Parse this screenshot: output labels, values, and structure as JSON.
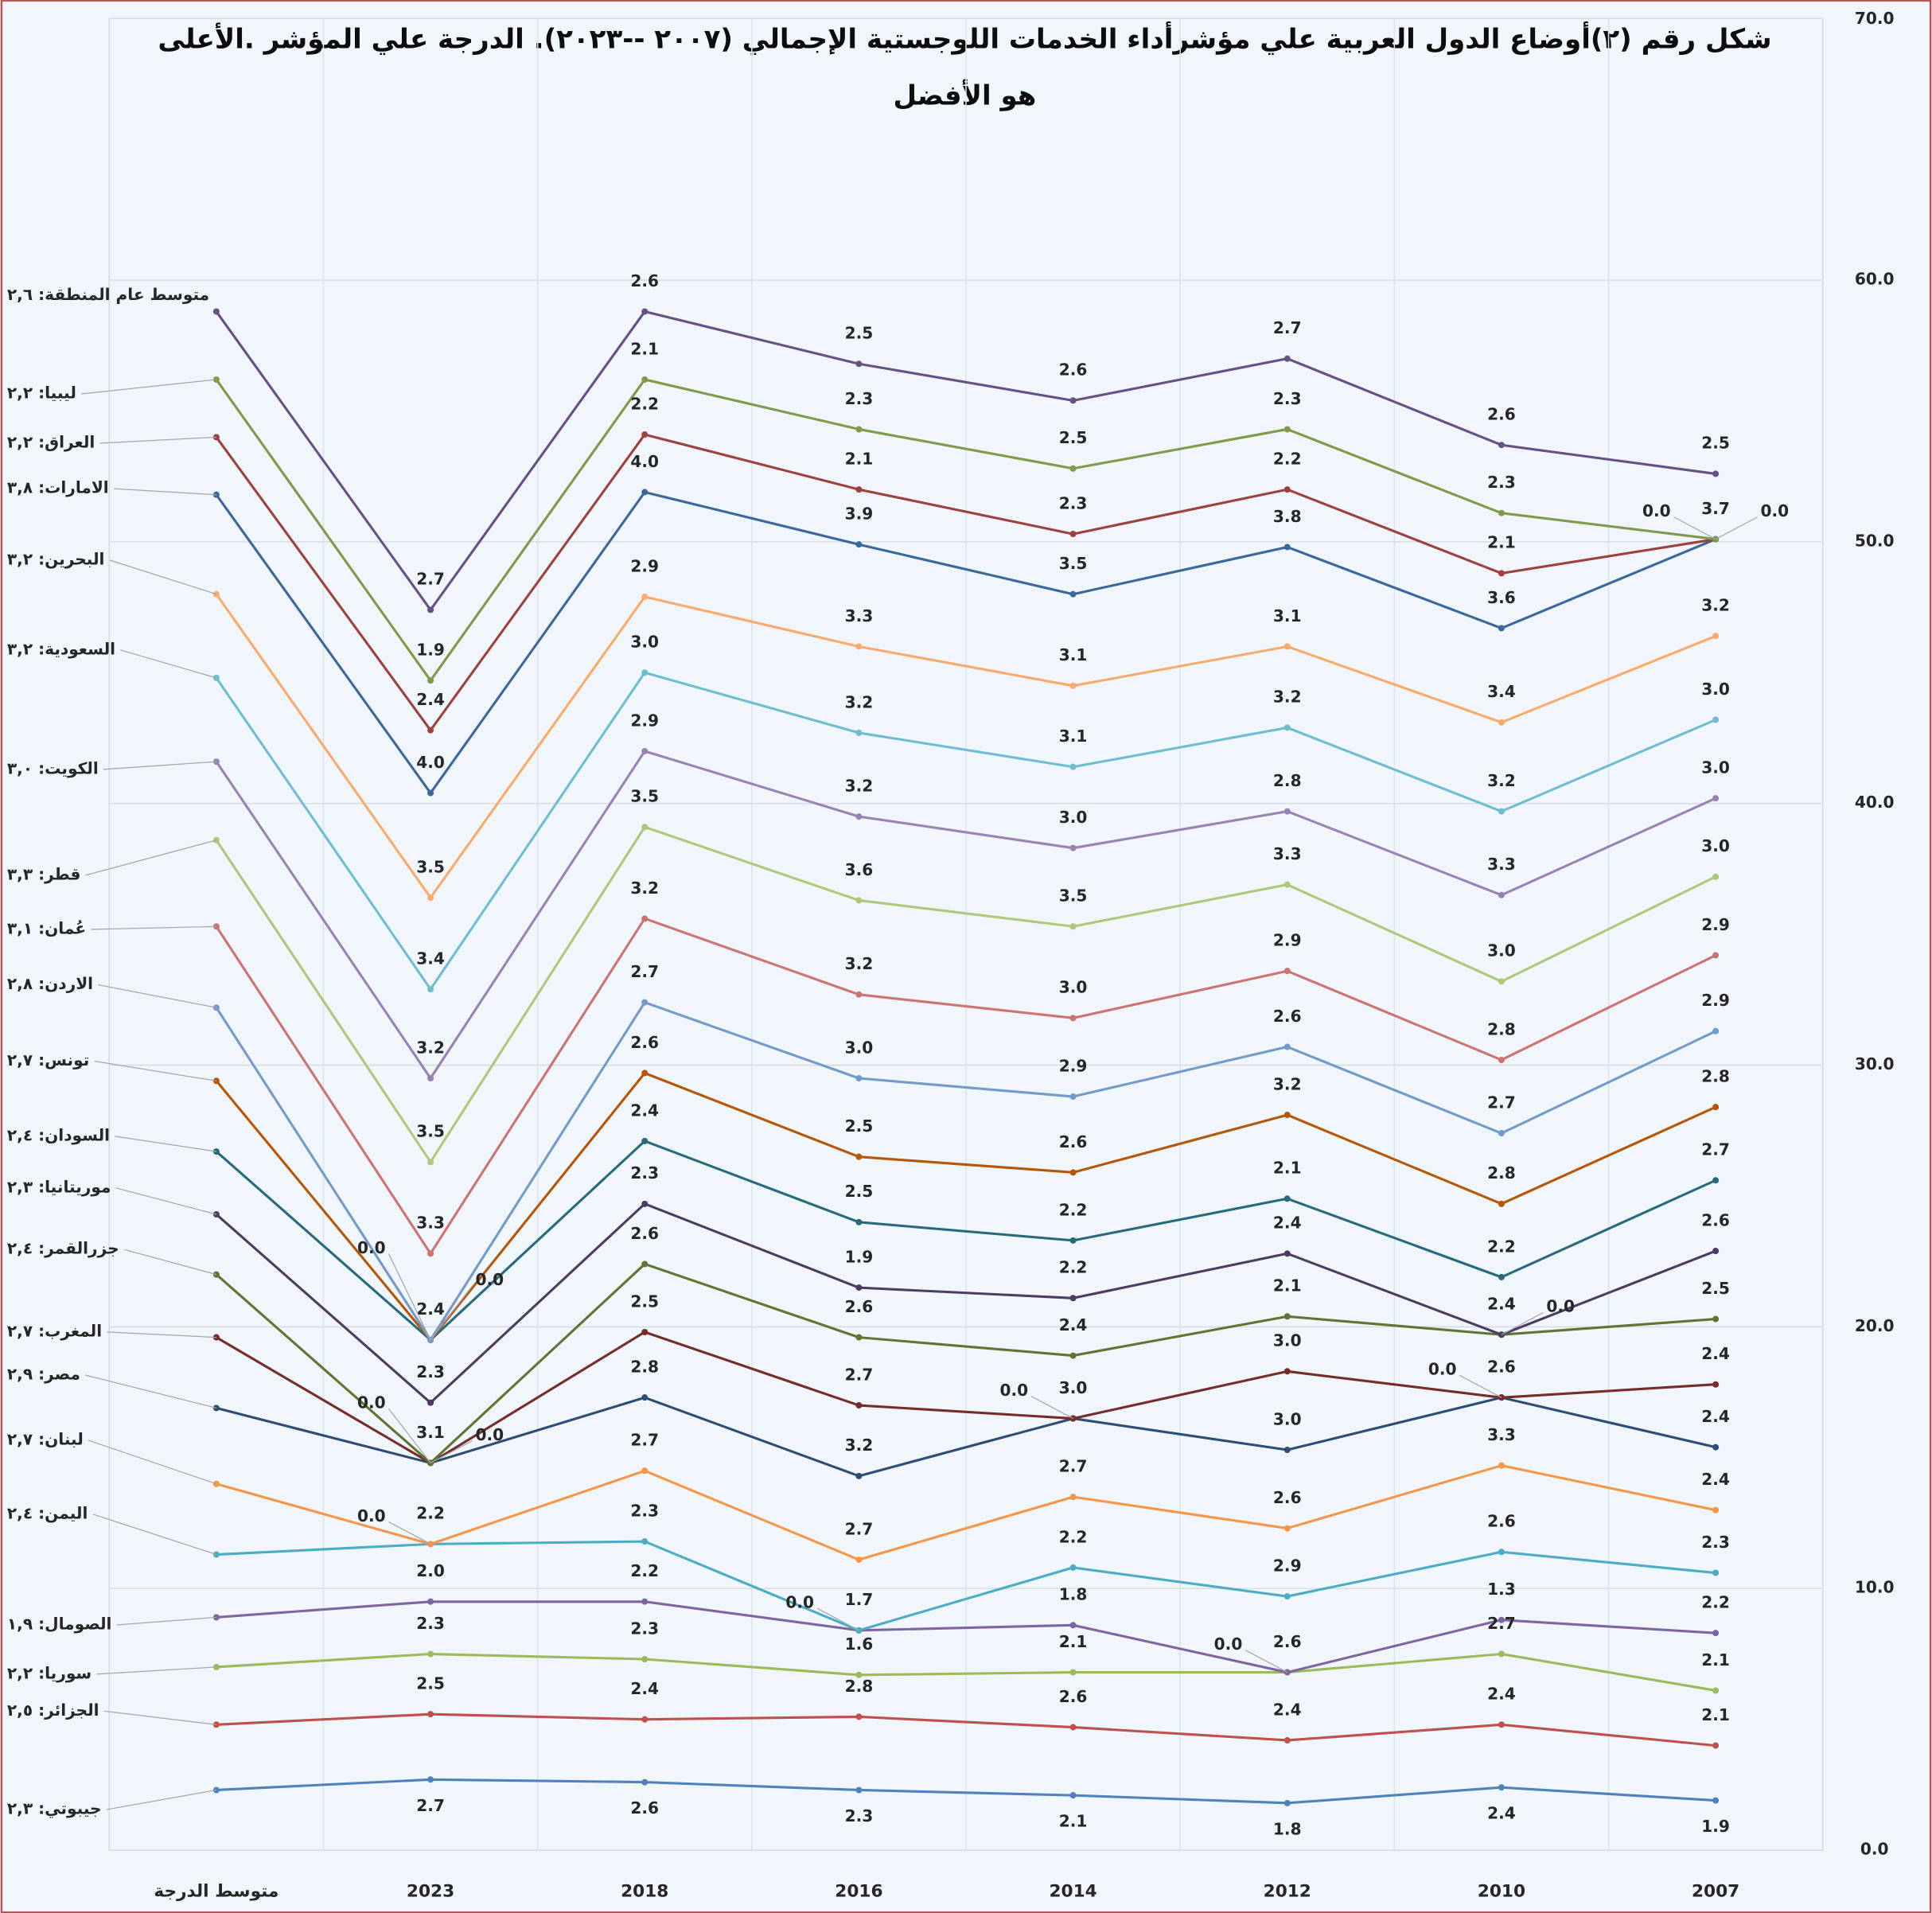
{
  "chart_data": {
    "type": "stacked-line",
    "title": [
      "شكل رقم (٢)أوضاع الدول العربية علي مؤشرأداء الخدمات اللوجستية الإجمالي (٢٠٠٧ --٢٠٢٣). الدرجة علي المؤشر .الأعلى",
      "هو الأفضل"
    ],
    "categories": [
      "متوسط الدرجة",
      "2023",
      "2018",
      "2016",
      "2014",
      "2012",
      "2010",
      "2007"
    ],
    "ylim": [
      0,
      70
    ],
    "yticks": [
      {
        "value": 0,
        "label": "0.0"
      },
      {
        "value": 10,
        "label": "10.0"
      },
      {
        "value": 20,
        "label": "20.0"
      },
      {
        "value": 30,
        "label": "30.0"
      },
      {
        "value": 40,
        "label": "40.0"
      },
      {
        "value": 50,
        "label": "50.0"
      },
      {
        "value": 60,
        "label": "60.0"
      },
      {
        "value": 70,
        "label": "70.0"
      }
    ],
    "y_axis_side": "right",
    "grid": true,
    "series": [
      {
        "color": "#4f81bd",
        "values": [
          2.3,
          2.7,
          2.6,
          2.3,
          2.1,
          1.8,
          2.4,
          1.9
        ],
        "value_labels": [
          "جيبوتي: ٢,٣",
          "2.7",
          "2.6",
          "2.3",
          "2.1",
          "1.8",
          "2.4",
          "1.9"
        ]
      },
      {
        "color": "#c0504d",
        "values": [
          2.5,
          2.5,
          2.4,
          2.8,
          2.6,
          2.4,
          2.4,
          2.1
        ],
        "value_labels": [
          "الجزائر: ٢,٥",
          "2.5",
          "2.4",
          "2.8",
          "2.6",
          "2.4",
          "2.4",
          "2.1"
        ]
      },
      {
        "color": "#9bbb59",
        "values": [
          2.2,
          2.3,
          2.3,
          1.6,
          2.1,
          2.6,
          2.7,
          2.1
        ],
        "value_labels": [
          "سوريا: ٢,٢",
          "2.3",
          "2.3",
          "1.6",
          "2.1",
          "2.6",
          "2.7",
          "2.1"
        ]
      },
      {
        "color": "#8064a2",
        "values": [
          1.9,
          2.0,
          2.2,
          1.7,
          1.8,
          0,
          1.3,
          2.2
        ],
        "value_labels": [
          "الصومال: ١,٩",
          "2.0",
          "2.2",
          "1.7",
          "1.8",
          "0.0",
          "1.3",
          "2.2"
        ]
      },
      {
        "color": "#4bacc6",
        "values": [
          2.4,
          2.2,
          2.3,
          0,
          2.2,
          2.9,
          2.6,
          2.3
        ],
        "value_labels": [
          "اليمن: ٢,٤",
          "2.2",
          "2.3",
          "0.0",
          "2.2",
          "2.9",
          "2.6",
          "2.3"
        ]
      },
      {
        "color": "#f79646",
        "values": [
          2.7,
          0,
          2.7,
          2.7,
          2.7,
          2.6,
          3.3,
          2.4
        ],
        "value_labels": [
          "لبنان: ٢,٧",
          "0.0",
          "2.7",
          "2.7",
          "2.7",
          "2.6",
          "3.3",
          "2.4"
        ]
      },
      {
        "color": "#2c4d75",
        "values": [
          2.9,
          3.1,
          2.8,
          3.2,
          3.0,
          3.0,
          2.6,
          2.4
        ],
        "value_labels": [
          "مصر: ٢,٩",
          "3.1",
          "2.8",
          "3.2",
          "3.0",
          "3.0",
          "2.6",
          "2.4"
        ]
      },
      {
        "color": "#772c2a",
        "values": [
          2.7,
          0,
          2.5,
          2.7,
          0,
          3.0,
          0,
          2.4
        ],
        "value_labels": [
          "المغرب: ٢,٧",
          "0.0",
          "2.5",
          "2.7",
          "0.0",
          "3.0",
          "0.0",
          "2.4"
        ]
      },
      {
        "color": "#5f7530",
        "values": [
          2.4,
          0,
          2.6,
          2.6,
          2.4,
          2.1,
          2.4,
          2.5
        ],
        "value_labels": [
          "جزرالقمر: ٢,٤",
          "0.0",
          "2.6",
          "2.6",
          "2.4",
          "2.1",
          "2.4",
          "2.5"
        ]
      },
      {
        "color": "#4d3b62",
        "values": [
          2.3,
          2.3,
          2.3,
          1.9,
          2.2,
          2.4,
          0,
          2.6
        ],
        "value_labels": [
          "موريتانيا: ٢,٣",
          "2.3",
          "2.3",
          "1.9",
          "2.2",
          "2.4",
          "0.0",
          "2.6"
        ]
      },
      {
        "color": "#276a7c",
        "values": [
          2.4,
          2.4,
          2.4,
          2.5,
          2.2,
          2.1,
          2.2,
          2.7
        ],
        "value_labels": [
          "السودان: ٢,٤",
          "2.4",
          "2.4",
          "2.5",
          "2.2",
          "2.1",
          "2.2",
          "2.7"
        ]
      },
      {
        "color": "#b65708",
        "values": [
          2.7,
          0,
          2.6,
          2.5,
          2.6,
          3.2,
          2.8,
          2.8
        ],
        "value_labels": [
          "تونس: ٢,٧",
          "0.0",
          "2.6",
          "2.5",
          "2.6",
          "3.2",
          "2.8",
          "2.8"
        ]
      },
      {
        "color": "#729aca",
        "values": [
          2.8,
          0,
          2.7,
          3.0,
          2.9,
          2.6,
          2.7,
          2.9
        ],
        "value_labels": [
          "الاردن: ٢,٨",
          "0.0",
          "2.7",
          "3.0",
          "2.9",
          "2.6",
          "2.7",
          "2.9"
        ]
      },
      {
        "color": "#cd7371",
        "values": [
          3.1,
          3.3,
          3.2,
          3.2,
          3.0,
          2.9,
          2.8,
          2.9
        ],
        "value_labels": [
          "عُمان: ٣,١",
          "3.3",
          "3.2",
          "3.2",
          "3.0",
          "2.9",
          "2.8",
          "2.9"
        ]
      },
      {
        "color": "#afc97a",
        "values": [
          3.3,
          3.5,
          3.5,
          3.6,
          3.5,
          3.3,
          3.0,
          3.0
        ],
        "value_labels": [
          "قطر: ٣,٣",
          "3.5",
          "3.5",
          "3.6",
          "3.5",
          "3.3",
          "3.0",
          "3.0"
        ]
      },
      {
        "color": "#9983b5",
        "values": [
          3.0,
          3.2,
          2.9,
          3.2,
          3.0,
          2.8,
          3.3,
          3.0
        ],
        "value_labels": [
          "الكويت: ٣,٠",
          "3.2",
          "2.9",
          "3.2",
          "3.0",
          "2.8",
          "3.3",
          "3.0"
        ]
      },
      {
        "color": "#6fbdd1",
        "values": [
          3.2,
          3.4,
          3.0,
          3.2,
          3.1,
          3.2,
          3.2,
          3.0
        ],
        "value_labels": [
          "السعودية: ٣,٢",
          "3.4",
          "3.0",
          "3.2",
          "3.1",
          "3.2",
          "3.2",
          "3.0"
        ]
      },
      {
        "color": "#f9ab6b",
        "values": [
          3.2,
          3.5,
          2.9,
          3.3,
          3.1,
          3.1,
          3.4,
          3.2
        ],
        "value_labels": [
          "البحرين: ٣,٢",
          "3.5",
          "2.9",
          "3.3",
          "3.1",
          "3.1",
          "3.4",
          "3.2"
        ]
      },
      {
        "color": "#3a679c",
        "values": [
          3.8,
          4.0,
          4.0,
          3.9,
          3.5,
          3.8,
          3.6,
          3.7
        ],
        "value_labels": [
          "الامارات: ٣,٨",
          "4.0",
          "4.0",
          "3.9",
          "3.5",
          "3.8",
          "3.6",
          "3.7"
        ]
      },
      {
        "color": "#9e413e",
        "values": [
          2.2,
          2.4,
          2.2,
          2.1,
          2.3,
          2.2,
          2.1,
          0
        ],
        "value_labels": [
          "العراق: ٢,٢",
          "2.4",
          "2.2",
          "2.1",
          "2.3",
          "2.2",
          "2.1",
          "0.0"
        ]
      },
      {
        "color": "#7f9a48",
        "values": [
          2.2,
          1.9,
          2.1,
          2.3,
          2.5,
          2.3,
          2.3,
          0
        ],
        "value_labels": [
          "ليبيا: ٢,٢",
          "1.9",
          "2.1",
          "2.3",
          "2.5",
          "2.3",
          "2.3",
          "0.0"
        ]
      },
      {
        "color": "#675083",
        "values": [
          2.6,
          2.7,
          2.6,
          2.5,
          2.6,
          2.7,
          2.6,
          2.5
        ],
        "value_labels": [
          "متوسط عام المنطقة: ٢,٦",
          "2.7",
          "2.6",
          "2.5",
          "2.6",
          "2.7",
          "2.6",
          "2.5"
        ]
      }
    ]
  }
}
